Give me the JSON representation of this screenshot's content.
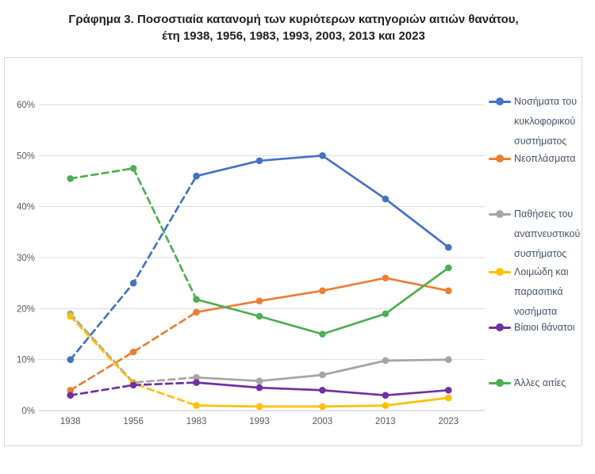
{
  "title": {
    "line1": "Γράφημα 3. Ποσοστιαία κατανομή των κυριότερων κατηγοριών αιτιών θανάτου,",
    "line2": "έτη 1938, 1956, 1983, 1993, 2003, 2013 και 2023"
  },
  "chart_data": {
    "type": "line",
    "categories": [
      "1938",
      "1956",
      "1983",
      "1993",
      "2003",
      "2013",
      "2023"
    ],
    "series": [
      {
        "name": "Νοσήματα του κυκλοφορικού συστήματος",
        "color": "#4472C4",
        "values": [
          10,
          25,
          46,
          49,
          50,
          41.5,
          32
        ]
      },
      {
        "name": "Νεοπλάσματα",
        "color": "#ED7D31",
        "values": [
          4,
          11.5,
          19.3,
          21.5,
          23.5,
          26,
          23.5
        ]
      },
      {
        "name": "Παθήσεις του αναπνευστικού συστήματος",
        "color": "#A5A5A5",
        "values": [
          19,
          5.5,
          6.5,
          5.8,
          7,
          9.8,
          10
        ]
      },
      {
        "name": "Λοιμώδη και παρασιτικά νοσήματα",
        "color": "#FFC000",
        "values": [
          18.5,
          5.3,
          1,
          0.8,
          0.8,
          1,
          2.5
        ]
      },
      {
        "name": "Βίαιοι θάνατοι",
        "color": "#7030A0",
        "values": [
          3,
          5,
          5.5,
          4.5,
          4,
          3,
          4
        ]
      },
      {
        "name": "Άλλες αιτίες",
        "color": "#4CAF50",
        "values": [
          45.5,
          47.5,
          21.8,
          18.5,
          15,
          19,
          28
        ]
      }
    ],
    "dashed_until_index": 2,
    "ylim": [
      0,
      65
    ],
    "yticks": [
      "0%",
      "10%",
      "20%",
      "30%",
      "40%",
      "50%",
      "60%"
    ],
    "ytick_values": [
      0,
      10,
      20,
      30,
      40,
      50,
      60
    ],
    "grid": true,
    "legend_position": "right",
    "grid_color": "#D9D9D9",
    "axis_line_color": "#C6C6C6",
    "tick_label_color": "#595959",
    "legend_text_color": "#44546A"
  }
}
